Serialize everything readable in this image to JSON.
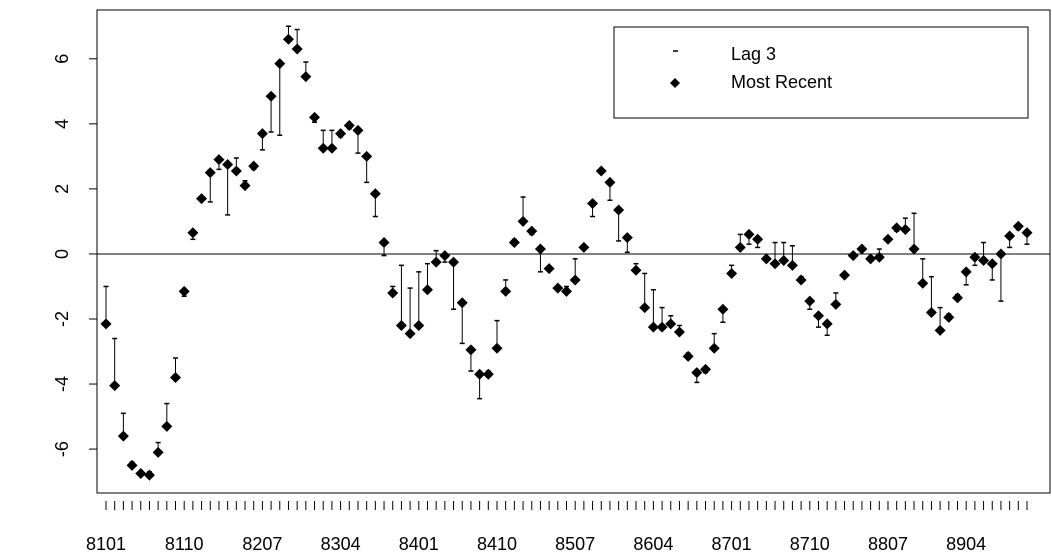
{
  "chart_data": {
    "type": "line-range",
    "categories": [
      "8101",
      null,
      null,
      null,
      null,
      null,
      null,
      null,
      null,
      "8110",
      null,
      null,
      null,
      null,
      null,
      null,
      null,
      null,
      "8207",
      null,
      null,
      null,
      null,
      null,
      null,
      null,
      null,
      "8304",
      null,
      null,
      null,
      null,
      null,
      null,
      null,
      null,
      "8401",
      null,
      null,
      null,
      null,
      null,
      null,
      null,
      null,
      "8410",
      null,
      null,
      null,
      null,
      null,
      null,
      null,
      null,
      "8507",
      null,
      null,
      null,
      null,
      null,
      null,
      null,
      null,
      "8604",
      null,
      null,
      null,
      null,
      null,
      null,
      null,
      null,
      "8701",
      null,
      null,
      null,
      null,
      null,
      null,
      null,
      null,
      "8710",
      null,
      null,
      null,
      null,
      null,
      null,
      null,
      null,
      "8807",
      null,
      null,
      null,
      null,
      null,
      null,
      null,
      null,
      "8904",
      null,
      null,
      null,
      null,
      null,
      null,
      null
    ],
    "series": [
      {
        "name": "Lag 3",
        "color": "#000000",
        "marker": "dash",
        "values": [
          -1.0,
          -2.6,
          -4.9,
          -6.4,
          -6.7,
          -6.7,
          -5.8,
          -4.6,
          -3.2,
          -1.3,
          0.45,
          1.7,
          1.6,
          2.6,
          1.2,
          2.95,
          2.25,
          2.6,
          3.2,
          3.75,
          3.65,
          7.0,
          6.9,
          5.9,
          4.05,
          3.8,
          3.8,
          3.6,
          3.85,
          3.1,
          2.2,
          1.15,
          -0.05,
          -1.0,
          -0.35,
          -1.05,
          -0.55,
          -0.3,
          0.1,
          -0.25,
          -1.7,
          -2.75,
          -3.6,
          -4.45,
          -3.6,
          -2.05,
          -0.8,
          0.45,
          1.75,
          0.6,
          -0.55,
          -0.4,
          -1.05,
          -1.0,
          -0.15,
          0.25,
          1.15,
          2.6,
          1.65,
          0.4,
          0.05,
          -0.3,
          -0.6,
          -1.1,
          -1.65,
          -1.9,
          -2.2,
          -3.05,
          -3.95,
          -3.65,
          -2.45,
          -2.1,
          -0.35,
          0.6,
          0.3,
          0.2,
          -0.1,
          0.35,
          0.35,
          0.25,
          -0.7,
          -1.7,
          -2.25,
          -2.5,
          -1.2,
          -0.6,
          0,
          0.1,
          -0.1,
          0.15,
          0.5,
          0.7,
          1.1,
          1.25,
          -0.15,
          -0.7,
          -1.65,
          -1.85,
          -1.25,
          -0.95,
          -0.35,
          0.35,
          -0.8,
          -1.45,
          0.2,
          0.75,
          0.3
        ]
      },
      {
        "name": "Most Recent",
        "color": "#000000",
        "marker": "diamond",
        "values": [
          -2.15,
          -4.05,
          -5.6,
          -6.5,
          -6.75,
          -6.8,
          -6.1,
          -5.3,
          -3.8,
          -1.15,
          0.65,
          1.7,
          2.5,
          2.9,
          2.75,
          2.55,
          2.1,
          2.7,
          3.7,
          4.85,
          5.85,
          6.6,
          6.3,
          5.45,
          4.2,
          3.25,
          3.25,
          3.7,
          3.95,
          3.8,
          3.0,
          1.85,
          0.35,
          -1.2,
          -2.2,
          -2.45,
          -2.2,
          -1.1,
          -0.25,
          -0.05,
          -0.25,
          -1.5,
          -2.95,
          -3.7,
          -3.7,
          -2.9,
          -1.15,
          0.35,
          1.0,
          0.7,
          0.15,
          -0.45,
          -1.05,
          -1.15,
          -0.8,
          0.2,
          1.55,
          2.55,
          2.2,
          1.35,
          0.5,
          -0.5,
          -1.65,
          -2.25,
          -2.25,
          -2.15,
          -2.4,
          -3.15,
          -3.65,
          -3.55,
          -2.9,
          -1.7,
          -0.6,
          0.2,
          0.6,
          0.45,
          -0.15,
          -0.3,
          -0.2,
          -0.35,
          -0.8,
          -1.45,
          -1.9,
          -2.15,
          -1.55,
          -0.65,
          -0.05,
          0.15,
          -0.15,
          -0.1,
          0.45,
          0.8,
          0.75,
          0.15,
          -0.9,
          -1.8,
          -2.35,
          -1.95,
          -1.35,
          -0.55,
          -0.1,
          -0.2,
          -0.3,
          0.0,
          0.55,
          0.85,
          0.65
        ]
      }
    ],
    "ylim": [
      -7.35,
      7.5
    ],
    "yticks": [
      -6,
      -4,
      -2,
      0,
      2,
      4,
      6
    ],
    "hline": 0,
    "legend": "top-right"
  }
}
